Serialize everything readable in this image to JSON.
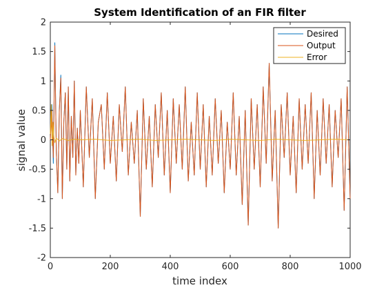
{
  "chart_data": {
    "type": "line",
    "title": "System Identification of an FIR filter",
    "xlabel": "time index",
    "ylabel": "signal value",
    "xlim": [
      0,
      1000
    ],
    "ylim": [
      -2,
      2
    ],
    "xticks": [
      0,
      200,
      400,
      600,
      800,
      1000
    ],
    "yticks": [
      -2,
      -1.5,
      -1,
      -0.5,
      0,
      0.5,
      1,
      1.5,
      2
    ],
    "grid": false,
    "legend_position": "top-right",
    "series": [
      {
        "name": "Desired",
        "color": "#0072BD",
        "x": [
          0,
          5,
          10,
          15,
          20,
          25,
          30,
          35,
          40,
          45,
          50,
          55,
          60,
          65,
          70,
          75,
          80,
          85,
          90,
          95,
          100,
          110,
          120,
          130,
          140,
          150,
          160,
          170,
          180,
          190,
          200,
          210,
          220,
          230,
          240,
          250,
          260,
          270,
          280,
          290,
          300,
          310,
          320,
          330,
          340,
          350,
          360,
          370,
          380,
          390,
          400,
          410,
          420,
          430,
          440,
          450,
          460,
          470,
          480,
          490,
          500,
          510,
          520,
          530,
          540,
          550,
          560,
          570,
          580,
          590,
          600,
          610,
          620,
          630,
          640,
          650,
          660,
          670,
          680,
          690,
          700,
          710,
          720,
          730,
          740,
          750,
          760,
          770,
          780,
          790,
          800,
          810,
          820,
          830,
          840,
          850,
          860,
          870,
          880,
          890,
          900,
          910,
          920,
          930,
          940,
          950,
          960,
          970,
          980,
          990,
          1000
        ],
        "values": [
          0.1,
          0.6,
          -0.4,
          1.65,
          -0.2,
          -0.9,
          0.5,
          1.1,
          -1.0,
          0.3,
          0.8,
          -0.5,
          0.9,
          -0.7,
          0.4,
          -0.3,
          1.0,
          -0.6,
          0.2,
          -0.4,
          0.5,
          -0.8,
          0.9,
          -0.3,
          0.7,
          -1.0,
          0.3,
          0.6,
          -0.5,
          0.8,
          -0.4,
          0.4,
          -0.7,
          0.6,
          -0.2,
          0.9,
          -0.6,
          0.3,
          -0.4,
          0.5,
          -1.3,
          0.7,
          -0.5,
          0.4,
          -0.8,
          0.6,
          -0.3,
          0.8,
          -0.6,
          0.5,
          -0.9,
          0.7,
          -0.4,
          0.6,
          -0.5,
          0.9,
          -0.7,
          0.3,
          -0.6,
          0.8,
          -0.5,
          0.6,
          -0.8,
          0.4,
          -0.6,
          0.7,
          -0.4,
          0.5,
          -0.9,
          0.3,
          -0.5,
          0.8,
          -0.6,
          0.4,
          -1.1,
          0.5,
          -1.45,
          0.7,
          -0.5,
          0.6,
          -0.8,
          0.9,
          -0.4,
          1.3,
          -0.7,
          0.5,
          -1.5,
          0.6,
          -0.3,
          0.8,
          -0.6,
          0.4,
          -0.9,
          0.7,
          -0.5,
          0.6,
          -0.4,
          0.8,
          -1.0,
          0.5,
          -0.6,
          0.7,
          -0.4,
          0.6,
          -0.8,
          0.5,
          -0.3,
          0.7,
          -1.2,
          0.9,
          -1.0
        ]
      },
      {
        "name": "Output",
        "color": "#D95319",
        "x": [
          0,
          5,
          10,
          15,
          20,
          25,
          30,
          35,
          40,
          45,
          50,
          55,
          60,
          65,
          70,
          75,
          80,
          85,
          90,
          95,
          100,
          110,
          120,
          130,
          140,
          150,
          160,
          170,
          180,
          190,
          200,
          210,
          220,
          230,
          240,
          250,
          260,
          270,
          280,
          290,
          300,
          310,
          320,
          330,
          340,
          350,
          360,
          370,
          380,
          390,
          400,
          410,
          420,
          430,
          440,
          450,
          460,
          470,
          480,
          490,
          500,
          510,
          520,
          530,
          540,
          550,
          560,
          570,
          580,
          590,
          600,
          610,
          620,
          630,
          640,
          650,
          660,
          670,
          680,
          690,
          700,
          710,
          720,
          730,
          740,
          750,
          760,
          770,
          780,
          790,
          800,
          810,
          820,
          830,
          840,
          850,
          860,
          870,
          880,
          890,
          900,
          910,
          920,
          930,
          940,
          950,
          960,
          970,
          980,
          990,
          1000
        ],
        "values": [
          0.0,
          0.5,
          -0.3,
          1.6,
          -0.2,
          -0.9,
          0.5,
          1.05,
          -1.0,
          0.3,
          0.8,
          -0.5,
          0.9,
          -0.7,
          0.4,
          -0.3,
          1.0,
          -0.6,
          0.2,
          -0.4,
          0.5,
          -0.8,
          0.9,
          -0.3,
          0.7,
          -1.0,
          0.3,
          0.6,
          -0.5,
          0.8,
          -0.4,
          0.4,
          -0.7,
          0.6,
          -0.2,
          0.9,
          -0.6,
          0.3,
          -0.4,
          0.5,
          -1.3,
          0.7,
          -0.5,
          0.4,
          -0.8,
          0.6,
          -0.3,
          0.8,
          -0.6,
          0.5,
          -0.9,
          0.7,
          -0.4,
          0.6,
          -0.5,
          0.9,
          -0.7,
          0.3,
          -0.6,
          0.8,
          -0.5,
          0.6,
          -0.8,
          0.4,
          -0.6,
          0.7,
          -0.4,
          0.5,
          -0.9,
          0.3,
          -0.5,
          0.8,
          -0.6,
          0.4,
          -1.1,
          0.5,
          -1.45,
          0.7,
          -0.5,
          0.6,
          -0.8,
          0.9,
          -0.4,
          1.3,
          -0.7,
          0.5,
          -1.5,
          0.6,
          -0.3,
          0.8,
          -0.6,
          0.4,
          -0.9,
          0.7,
          -0.5,
          0.6,
          -0.4,
          0.8,
          -1.0,
          0.5,
          -0.6,
          0.7,
          -0.4,
          0.6,
          -0.8,
          0.5,
          -0.3,
          0.7,
          -1.2,
          0.9,
          -1.0
        ]
      },
      {
        "name": "Error",
        "color": "#EDB120",
        "x": [
          0,
          3,
          6,
          9,
          12,
          15,
          20,
          30,
          40,
          60,
          80,
          100,
          150,
          200,
          250,
          300,
          350,
          400,
          450,
          500,
          550,
          600,
          650,
          700,
          750,
          800,
          850,
          900,
          950,
          1000
        ],
        "values": [
          0.1,
          0.6,
          -0.1,
          0.3,
          0.05,
          -0.05,
          0.03,
          -0.02,
          0.02,
          -0.01,
          0.01,
          0.0,
          0.01,
          -0.01,
          0.0,
          0.01,
          -0.01,
          0.0,
          0.01,
          0.0,
          -0.01,
          0.01,
          0.0,
          -0.01,
          0.01,
          0.0,
          -0.01,
          0.0,
          0.01,
          0.0
        ]
      }
    ]
  }
}
